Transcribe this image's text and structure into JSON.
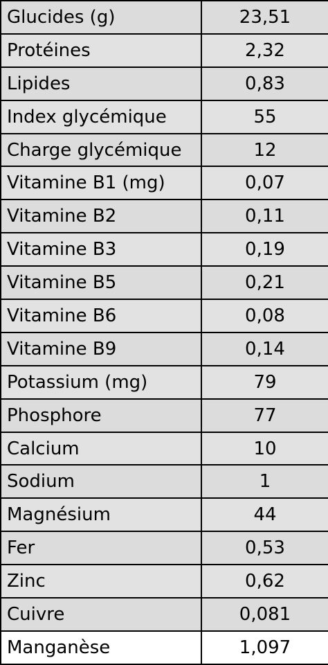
{
  "table": {
    "rows": [
      {
        "name": "Glucides (g)",
        "value": "23,51"
      },
      {
        "name": "Protéines",
        "value": "2,32"
      },
      {
        "name": "Lipides",
        "value": "0,83"
      },
      {
        "name": "Index glycémique",
        "value": "55"
      },
      {
        "name": "Charge glycémique",
        "value": "12"
      },
      {
        "name": "Vitamine B1 (mg)",
        "value": "0,07"
      },
      {
        "name": "Vitamine B2",
        "value": "0,11"
      },
      {
        "name": "Vitamine B3",
        "value": "0,19"
      },
      {
        "name": "Vitamine B5",
        "value": "0,21"
      },
      {
        "name": "Vitamine B6",
        "value": "0,08"
      },
      {
        "name": "Vitamine B9",
        "value": "0,14"
      },
      {
        "name": "Potassium (mg)",
        "value": "79"
      },
      {
        "name": "Phosphore",
        "value": "77"
      },
      {
        "name": "Calcium",
        "value": "10"
      },
      {
        "name": "Sodium",
        "value": "1"
      },
      {
        "name": "Magnésium",
        "value": "44"
      },
      {
        "name": "Fer",
        "value": "0,53"
      },
      {
        "name": "Zinc",
        "value": "0,62"
      },
      {
        "name": "Cuivre",
        "value": "0,081"
      },
      {
        "name": "Manganèse",
        "value": "1,097"
      }
    ]
  }
}
